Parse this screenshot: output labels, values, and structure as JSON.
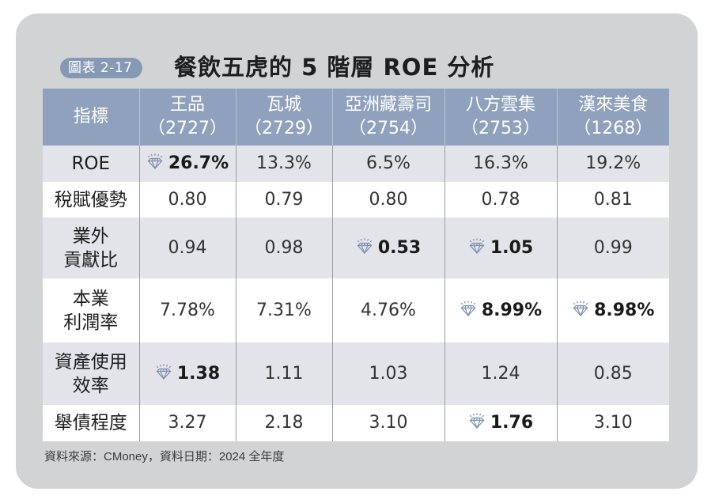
{
  "figure": {
    "badge": "圖表 2-17",
    "title": "餐飲五虎的 5 階層 ROE 分析"
  },
  "table": {
    "header": {
      "metric_label": "指標",
      "companies": [
        {
          "name": "王品",
          "code": "（2727）"
        },
        {
          "name": "瓦城",
          "code": "（2729）"
        },
        {
          "name": "亞洲藏壽司",
          "code": "（2754）"
        },
        {
          "name": "八方雲集",
          "code": "（2753）"
        },
        {
          "name": "漢來美食",
          "code": "（1268）"
        }
      ]
    },
    "rows": [
      {
        "label_1": "ROE",
        "label_2": "",
        "values": [
          "26.7%",
          "13.3%",
          "6.5%",
          "16.3%",
          "19.2%"
        ],
        "highlight": [
          true,
          false,
          false,
          false,
          false
        ]
      },
      {
        "label_1": "稅賦優勢",
        "label_2": "",
        "values": [
          "0.80",
          "0.79",
          "0.80",
          "0.78",
          "0.81"
        ],
        "highlight": [
          false,
          false,
          false,
          false,
          false
        ]
      },
      {
        "label_1": "業外",
        "label_2": "貢獻比",
        "values": [
          "0.94",
          "0.98",
          "0.53",
          "1.05",
          "0.99"
        ],
        "highlight": [
          false,
          false,
          true,
          true,
          false
        ]
      },
      {
        "label_1": "本業",
        "label_2": "利潤率",
        "values": [
          "7.78%",
          "7.31%",
          "4.76%",
          "8.99%",
          "8.98%"
        ],
        "highlight": [
          false,
          false,
          false,
          true,
          true
        ]
      },
      {
        "label_1": "資產使用",
        "label_2": "效率",
        "values": [
          "1.38",
          "1.11",
          "1.03",
          "1.24",
          "0.85"
        ],
        "highlight": [
          true,
          false,
          false,
          false,
          false
        ]
      },
      {
        "label_1": "舉債程度",
        "label_2": "",
        "values": [
          "3.27",
          "2.18",
          "3.10",
          "1.76",
          "3.10"
        ],
        "highlight": [
          false,
          false,
          false,
          true,
          false
        ]
      }
    ],
    "highlight_icon": "diamond-icon"
  },
  "footer": {
    "source": "資料來源：CMoney，資料日期：2024 全年度"
  },
  "colors": {
    "card_bg": "#d2d3d5",
    "header_bg": "#8fa1bc",
    "badge_bg": "#8599b5",
    "shaded_row": "#e3e4e9",
    "icon": "#7b8fb0"
  }
}
